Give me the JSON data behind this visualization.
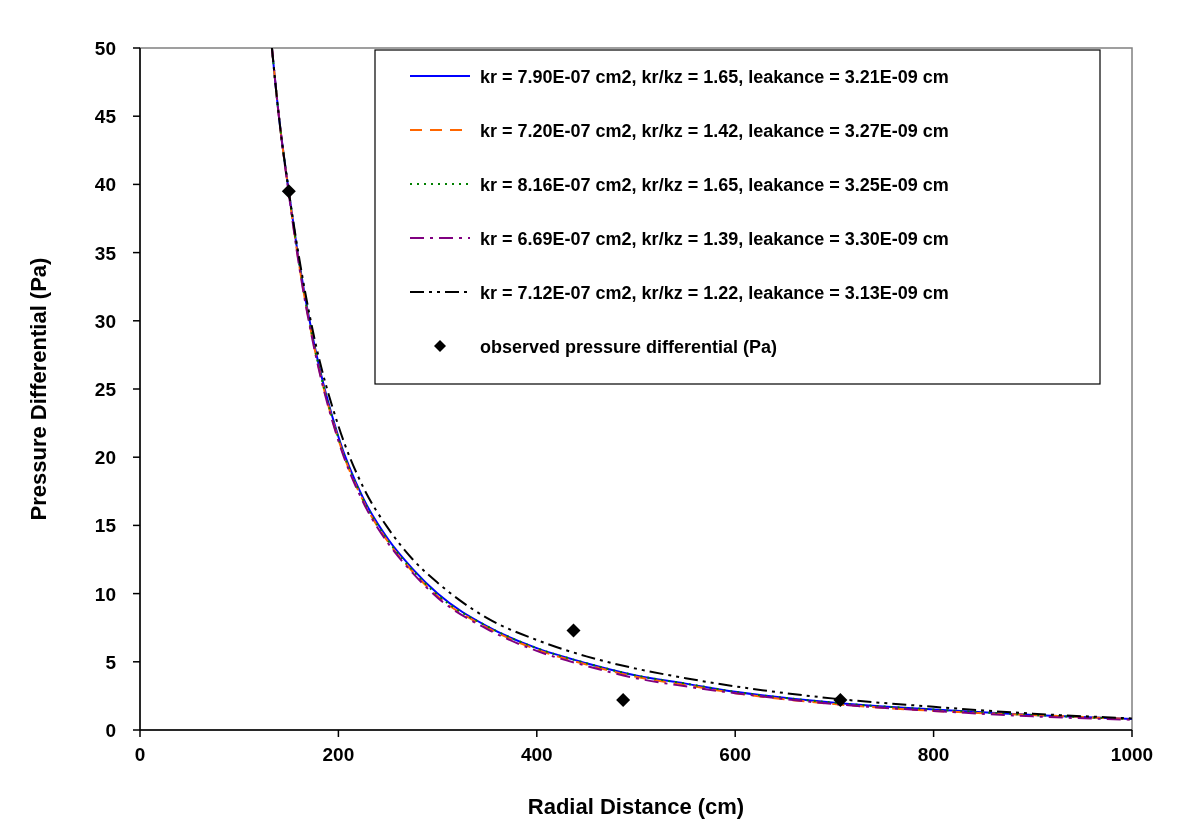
{
  "chart_data": {
    "type": "line",
    "xlabel": "Radial Distance (cm)",
    "ylabel": "Pressure Differential (Pa)",
    "xlim": [
      0,
      1000
    ],
    "xticks": [
      0,
      200,
      400,
      600,
      800,
      1000
    ],
    "ylim": [
      0,
      50
    ],
    "yticks": [
      0,
      5,
      10,
      15,
      20,
      25,
      30,
      35,
      40,
      45,
      50
    ],
    "grid": false,
    "legend": "top right",
    "marker": "none",
    "series": [
      {
        "name": "kr = 7.90E-07 cm2, kr/kz = 1.65, leakance = 3.21E-09 cm",
        "color": "#0000ff",
        "line_style": "solid",
        "x": [
          133,
          140,
          150,
          160,
          175,
          200,
          225,
          250,
          275,
          300,
          350,
          400,
          450,
          500,
          550,
          600,
          700,
          800,
          900,
          1000
        ],
        "values": [
          50,
          45,
          39.5,
          34.5,
          28.5,
          21.5,
          17,
          14,
          11.8,
          10,
          7.6,
          6,
          4.9,
          4,
          3.4,
          2.8,
          2,
          1.5,
          1.1,
          0.8
        ]
      },
      {
        "name": "kr = 7.20E-07 cm2, kr/kz = 1.42, leakance = 3.27E-09 cm",
        "color": "#ff6600",
        "line_style": "dashed",
        "x": [
          133,
          140,
          150,
          160,
          175,
          200,
          225,
          250,
          275,
          300,
          350,
          400,
          450,
          500,
          550,
          600,
          700,
          800,
          900,
          1000
        ],
        "values": [
          50,
          45,
          39.4,
          34.3,
          28.3,
          21.3,
          16.8,
          13.8,
          11.6,
          9.8,
          7.5,
          5.9,
          4.8,
          3.9,
          3.3,
          2.7,
          1.9,
          1.4,
          1.1,
          0.8
        ]
      },
      {
        "name": "kr = 8.16E-07 cm2, kr/kz = 1.65, leakance = 3.25E-09 cm",
        "color": "#008000",
        "line_style": "dotted",
        "x": [
          133,
          140,
          150,
          160,
          175,
          200,
          225,
          250,
          275,
          300,
          350,
          400,
          450,
          500,
          550,
          600,
          700,
          800,
          900,
          1000
        ],
        "values": [
          50,
          45,
          39.5,
          34.4,
          28.4,
          21.4,
          16.9,
          13.9,
          11.7,
          9.9,
          7.6,
          6,
          4.9,
          4,
          3.4,
          2.8,
          2,
          1.5,
          1.1,
          0.8
        ]
      },
      {
        "name": "kr = 6.69E-07 cm2, kr/kz = 1.39, leakance = 3.30E-09 cm",
        "color": "#800080",
        "line_style": "dashdot",
        "x": [
          133,
          140,
          150,
          160,
          175,
          200,
          225,
          250,
          275,
          300,
          350,
          400,
          450,
          500,
          550,
          600,
          700,
          800,
          900,
          1000
        ],
        "values": [
          50,
          45,
          39.3,
          34.2,
          28.2,
          21.2,
          16.7,
          13.7,
          11.5,
          9.7,
          7.4,
          5.8,
          4.7,
          3.8,
          3.2,
          2.7,
          1.9,
          1.4,
          1,
          0.75
        ]
      },
      {
        "name": "kr = 7.12E-07 cm2, kr/kz = 1.22, leakance = 3.13E-09 cm",
        "color": "#000000",
        "line_style": "dashdotdot",
        "x": [
          133,
          140,
          150,
          160,
          175,
          200,
          225,
          250,
          275,
          300,
          350,
          400,
          450,
          500,
          550,
          600,
          700,
          800,
          900,
          1000
        ],
        "values": [
          50,
          45,
          39.5,
          34.8,
          29,
          22.3,
          17.8,
          14.8,
          12.5,
          10.8,
          8.2,
          6.6,
          5.4,
          4.5,
          3.8,
          3.2,
          2.3,
          1.7,
          1.2,
          0.85
        ]
      },
      {
        "name": "observed pressure differential (Pa)",
        "type": "scatter",
        "marker": "diamond",
        "color": "#000000",
        "x": [
          150,
          437,
          487,
          706
        ],
        "values": [
          39.5,
          7.3,
          2.2,
          2.2
        ]
      }
    ]
  }
}
